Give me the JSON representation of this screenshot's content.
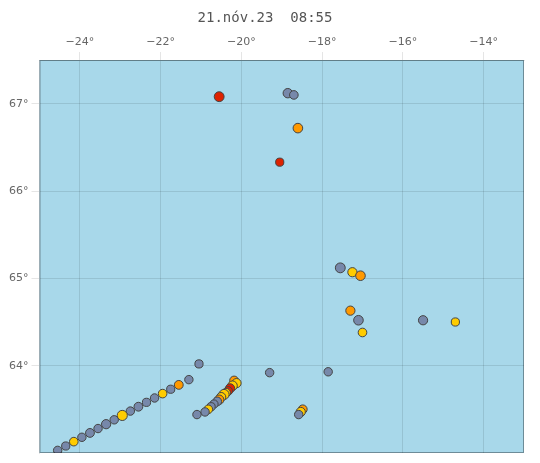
{
  "chart_data": {
    "type": "scatter",
    "title": "21.nóv.23  08:55",
    "marker": "circle",
    "grid": true,
    "xlim": [
      -25.0,
      -13.0
    ],
    "ylim": [
      63.0,
      67.5
    ],
    "xticks": [
      {
        "value": -24,
        "label": "−24°"
      },
      {
        "value": -22,
        "label": "−22°"
      },
      {
        "value": -20,
        "label": "−20°"
      },
      {
        "value": -18,
        "label": "−18°"
      },
      {
        "value": -16,
        "label": "−16°"
      },
      {
        "value": -14,
        "label": "−14°"
      }
    ],
    "yticks": [
      {
        "value": 64,
        "label": "64°"
      },
      {
        "value": 65,
        "label": "65°"
      },
      {
        "value": 66,
        "label": "66°"
      },
      {
        "value": 67,
        "label": "67°"
      }
    ],
    "x": [
      -20.55,
      -18.85,
      -18.7,
      -18.6,
      -19.05,
      -17.55,
      -17.25,
      -17.05,
      -17.3,
      -17.1,
      -17.0,
      -15.5,
      -14.7,
      -17.85,
      -19.3,
      -20.18,
      -20.12,
      -20.22,
      -20.28,
      -20.33,
      -20.38,
      -20.43,
      -20.5,
      -20.55,
      -20.6,
      -20.68,
      -20.75,
      -20.82,
      -20.9,
      -21.3,
      -21.55,
      -21.75,
      -21.95,
      -22.15,
      -22.35,
      -22.55,
      -22.75,
      -22.95,
      -23.15,
      -23.35,
      -23.55,
      -23.75,
      -23.95,
      -24.15,
      -24.35,
      -24.55,
      -18.48,
      -18.53,
      -18.58,
      -21.05,
      -21.1
    ],
    "values": [
      67.08,
      67.12,
      67.1,
      66.72,
      66.33,
      65.12,
      65.07,
      65.03,
      64.63,
      64.52,
      64.38,
      64.52,
      64.5,
      63.93,
      63.92,
      63.83,
      63.8,
      63.77,
      63.74,
      63.71,
      63.69,
      63.67,
      63.64,
      63.61,
      63.59,
      63.56,
      63.53,
      63.5,
      63.47,
      63.84,
      63.78,
      63.73,
      63.68,
      63.63,
      63.58,
      63.53,
      63.48,
      63.43,
      63.38,
      63.33,
      63.28,
      63.23,
      63.18,
      63.13,
      63.08,
      63.03,
      63.5,
      63.47,
      63.44,
      64.02,
      63.44
    ],
    "sizes": [
      55,
      50,
      42,
      52,
      38,
      55,
      48,
      52,
      48,
      52,
      42,
      48,
      38,
      40,
      40,
      44,
      48,
      52,
      48,
      44,
      44,
      58,
      48,
      50,
      44,
      40,
      38,
      42,
      40,
      40,
      44,
      38,
      42,
      40,
      38,
      44,
      40,
      58,
      40,
      48,
      40,
      44,
      40,
      42,
      38,
      40,
      44,
      48,
      40,
      38,
      40
    ],
    "colors": [
      "#dd2200",
      "#7788aa",
      "#7788aa",
      "#ff9900",
      "#dd2200",
      "#7788aa",
      "#ffcc00",
      "#ff9900",
      "#ff9900",
      "#7788aa",
      "#ffcc00",
      "#7788aa",
      "#ffcc00",
      "#7788aa",
      "#7788aa",
      "#ff9900",
      "#ffcc00",
      "#ffcc00",
      "#dd2200",
      "#dd2200",
      "#ffcc00",
      "#ffcc00",
      "#ffcc00",
      "#ff9900",
      "#7788aa",
      "#7788aa",
      "#7788aa",
      "#ffcc00",
      "#7788aa",
      "#7788aa",
      "#ff9900",
      "#7788aa",
      "#ffcc00",
      "#7788aa",
      "#7788aa",
      "#7788aa",
      "#7788aa",
      "#ffcc00",
      "#7788aa",
      "#7788aa",
      "#7788aa",
      "#7788aa",
      "#7788aa",
      "#ffcc00",
      "#7788aa",
      "#7788aa",
      "#ff9900",
      "#ffcc00",
      "#7788aa",
      "#7788aa",
      "#7788aa"
    ]
  }
}
